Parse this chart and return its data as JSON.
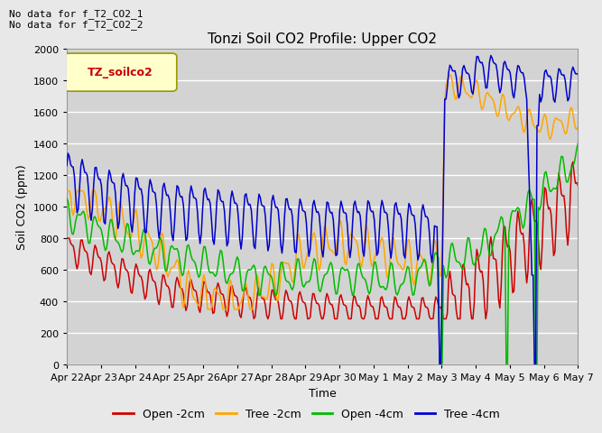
{
  "title": "Tonzi Soil CO2 Profile: Upper CO2",
  "xlabel": "Time",
  "ylabel": "Soil CO2 (ppm)",
  "ylim": [
    0,
    2000
  ],
  "note_line1": "No data for f_T2_CO2_1",
  "note_line2": "No data for f_T2_CO2_2",
  "legend_label_text": "TZ_soilco2",
  "xtick_labels": [
    "Apr 22",
    "Apr 23",
    "Apr 24",
    "Apr 25",
    "Apr 26",
    "Apr 27",
    "Apr 28",
    "Apr 29",
    "Apr 30",
    "May 1",
    "May 2",
    "May 3",
    "May 4",
    "May 5",
    "May 6",
    "May 7"
  ],
  "series_colors": {
    "open_2cm": "#cc0000",
    "tree_2cm": "#ffa500",
    "open_4cm": "#00bb00",
    "tree_4cm": "#0000cc"
  },
  "series_labels": {
    "open_2cm": "Open -2cm",
    "tree_2cm": "Tree -2cm",
    "open_4cm": "Open -4cm",
    "tree_4cm": "Tree -4cm"
  },
  "yticks": [
    0,
    200,
    400,
    600,
    800,
    1000,
    1200,
    1400,
    1600,
    1800,
    2000
  ],
  "fig_bg": "#e8e8e8",
  "ax_bg": "#d3d3d3",
  "grid_color": "#ffffff"
}
